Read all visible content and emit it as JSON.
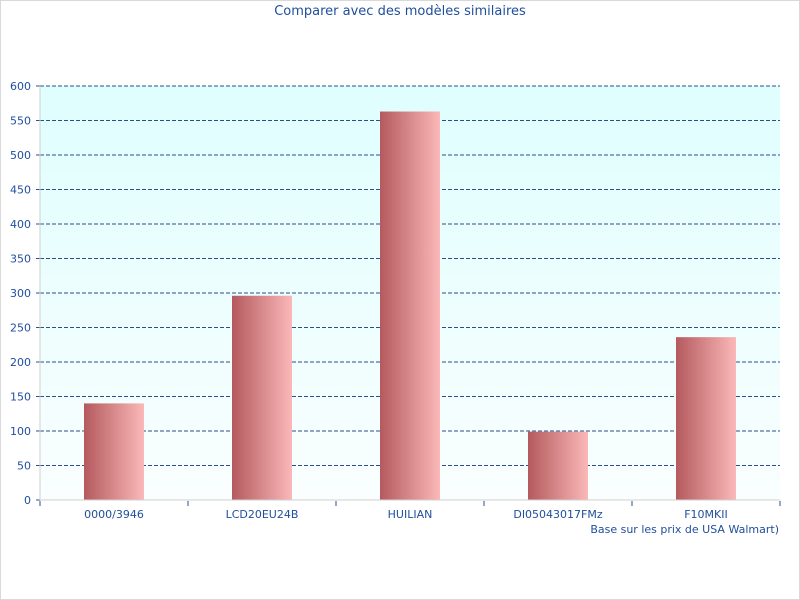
{
  "chart_data": {
    "type": "bar",
    "title": "Comparer avec des modèles similaires",
    "categories": [
      "0000/3946",
      "LCD20EU24B",
      "HUILIAN",
      "DI05043017FMz",
      "F10MKII"
    ],
    "values": [
      140,
      296,
      563,
      99,
      236
    ],
    "ylim": [
      0,
      600
    ],
    "yticks": [
      0,
      50,
      100,
      150,
      200,
      250,
      300,
      350,
      400,
      450,
      500,
      550,
      600
    ],
    "grid": true,
    "footnote": "Base sur les prix de USA Walmart)",
    "colors": {
      "bar_dark": "#b45a5e",
      "bar_light": "#fbb8b8",
      "plot_top": "#dffefe",
      "plot_bottom": "#fafefe",
      "grid": "#2a4f8c",
      "axis_text": "#1f4e9c"
    }
  }
}
